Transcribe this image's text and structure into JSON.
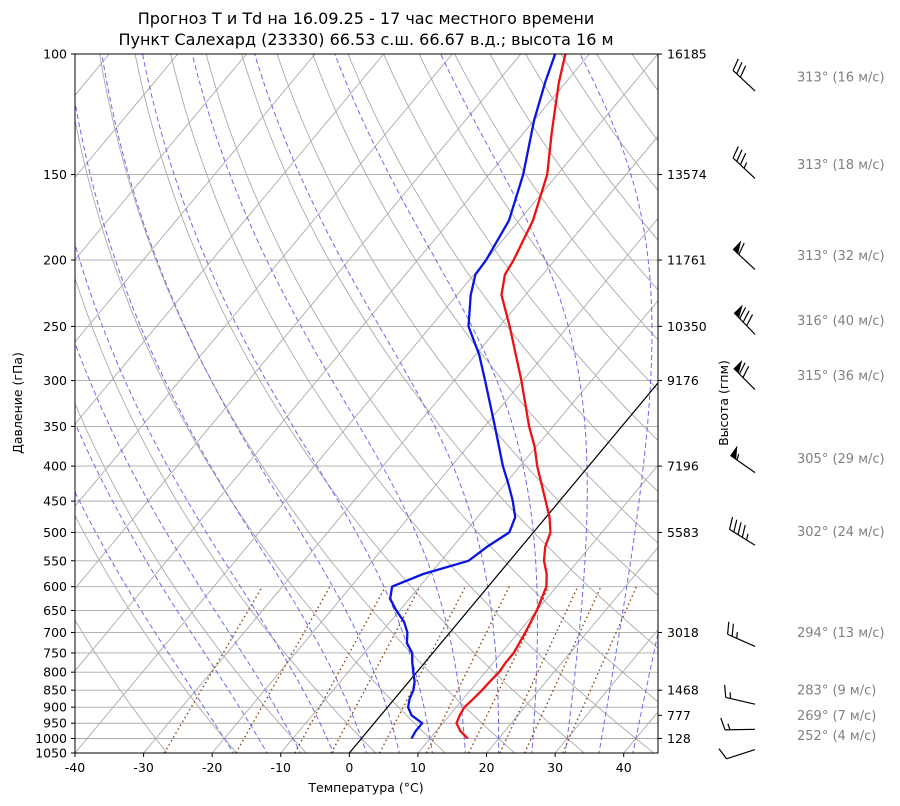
{
  "chart_data": {
    "type": "skew-t log-p sounding",
    "title": [
      "Прогноз T и Td на 16.09.25 - 17 час местного времени",
      "Пункт Салехард (23330) 66.53 с.ш. 66.67 в.д.; высота 16 м"
    ],
    "xlabel": "Температура (°C)",
    "ylabel": "Давление (гПа)",
    "ylabel_right": "Высота (гпм)",
    "xlim": [
      -40,
      45
    ],
    "ylim": [
      1050,
      100
    ],
    "y_scale": "log",
    "x_ticks": [
      -40,
      -30,
      -20,
      -10,
      0,
      10,
      20,
      30,
      40
    ],
    "pressure_ticks": [
      1050,
      1000,
      950,
      900,
      850,
      800,
      750,
      700,
      650,
      600,
      550,
      500,
      450,
      400,
      350,
      300,
      250,
      200,
      150,
      100
    ],
    "height_ticks": [
      {
        "p": 1000,
        "h": "128"
      },
      {
        "p": 925,
        "h": "777"
      },
      {
        "p": 850,
        "h": "1468"
      },
      {
        "p": 700,
        "h": "3018"
      },
      {
        "p": 500,
        "h": "5583"
      },
      {
        "p": 400,
        "h": "7196"
      },
      {
        "p": 300,
        "h": "9176"
      },
      {
        "p": 250,
        "h": "10350"
      },
      {
        "p": 200,
        "h": "11761"
      },
      {
        "p": 150,
        "h": "13574"
      },
      {
        "p": 100,
        "h": "16185"
      }
    ],
    "series": [
      {
        "color": "#ee1111",
        "points": [
          [
            1000,
            15.5
          ],
          [
            975,
            13.5
          ],
          [
            950,
            12.0
          ],
          [
            925,
            11.5
          ],
          [
            900,
            11.2
          ],
          [
            875,
            11.5
          ],
          [
            850,
            11.7
          ],
          [
            825,
            11.8
          ],
          [
            800,
            12.0
          ],
          [
            775,
            11.8
          ],
          [
            750,
            11.8
          ],
          [
            700,
            11.0
          ],
          [
            650,
            10.0
          ],
          [
            600,
            8.5
          ],
          [
            575,
            7.0
          ],
          [
            550,
            5.0
          ],
          [
            525,
            3.5
          ],
          [
            500,
            2.5
          ],
          [
            475,
            0.5
          ],
          [
            450,
            -2.0
          ],
          [
            400,
            -7.5
          ],
          [
            375,
            -10.2
          ],
          [
            350,
            -13.5
          ],
          [
            300,
            -20.2
          ],
          [
            250,
            -28.5
          ],
          [
            225,
            -33.5
          ],
          [
            210,
            -35.5
          ],
          [
            200,
            -36.0
          ],
          [
            175,
            -38.0
          ],
          [
            150,
            -41.5
          ],
          [
            130,
            -46.0
          ],
          [
            110,
            -51.0
          ],
          [
            100,
            -53.5
          ]
        ]
      },
      {
        "color": "#0a14e6",
        "points": [
          [
            1000,
            7.3
          ],
          [
            975,
            7.0
          ],
          [
            950,
            7.0
          ],
          [
            925,
            4.5
          ],
          [
            900,
            3.0
          ],
          [
            875,
            2.2
          ],
          [
            850,
            1.7
          ],
          [
            825,
            0.8
          ],
          [
            800,
            -0.5
          ],
          [
            775,
            -1.8
          ],
          [
            750,
            -3.0
          ],
          [
            725,
            -5.0
          ],
          [
            700,
            -6.2
          ],
          [
            675,
            -8.0
          ],
          [
            650,
            -10.5
          ],
          [
            625,
            -12.8
          ],
          [
            600,
            -14.0
          ],
          [
            575,
            -11.0
          ],
          [
            550,
            -6.0
          ],
          [
            525,
            -5.0
          ],
          [
            500,
            -3.5
          ],
          [
            475,
            -4.5
          ],
          [
            450,
            -6.8
          ],
          [
            425,
            -9.5
          ],
          [
            400,
            -12.5
          ],
          [
            350,
            -18.5
          ],
          [
            300,
            -25.5
          ],
          [
            275,
            -29.5
          ],
          [
            250,
            -34.5
          ],
          [
            225,
            -38.0
          ],
          [
            210,
            -39.8
          ],
          [
            200,
            -40.0
          ],
          [
            175,
            -41.5
          ],
          [
            150,
            -45.0
          ],
          [
            125,
            -50.0
          ],
          [
            110,
            -53.0
          ],
          [
            100,
            -55.0
          ]
        ]
      }
    ],
    "special_isotherm_c": 0,
    "winds": [
      {
        "p": 108,
        "dir_deg": 313,
        "speed_ms": 16,
        "label": "313° (16 м/с)"
      },
      {
        "p": 145,
        "dir_deg": 313,
        "speed_ms": 18,
        "label": "313° (18 м/с)"
      },
      {
        "p": 197,
        "dir_deg": 313,
        "speed_ms": 32,
        "label": "313° (32 м/с)"
      },
      {
        "p": 245,
        "dir_deg": 316,
        "speed_ms": 40,
        "label": "316° (40 м/с)"
      },
      {
        "p": 295,
        "dir_deg": 315,
        "speed_ms": 36,
        "label": "315° (36 м/с)"
      },
      {
        "p": 390,
        "dir_deg": 305,
        "speed_ms": 29,
        "label": "305° (29 м/с)"
      },
      {
        "p": 498,
        "dir_deg": 302,
        "speed_ms": 24,
        "label": "302° (24 м/с)"
      },
      {
        "p": 700,
        "dir_deg": 294,
        "speed_ms": 13,
        "label": "294° (13 м/с)"
      },
      {
        "p": 850,
        "dir_deg": 283,
        "speed_ms": 9,
        "label": "283° (9 м/с)"
      },
      {
        "p": 925,
        "dir_deg": 269,
        "speed_ms": 7,
        "label": "269° (7 м/с)"
      },
      {
        "p": 990,
        "dir_deg": 252,
        "speed_ms": 4,
        "label": "252° (4 м/с)"
      }
    ],
    "colors": {
      "dry_adiabats": "#aaaaaa",
      "moist_adiabats": "#6b6bee",
      "mixing_ratio": "#8b4513",
      "isobars": "#aaaaaa",
      "wind_labels": "#808080"
    },
    "grid": true
  }
}
